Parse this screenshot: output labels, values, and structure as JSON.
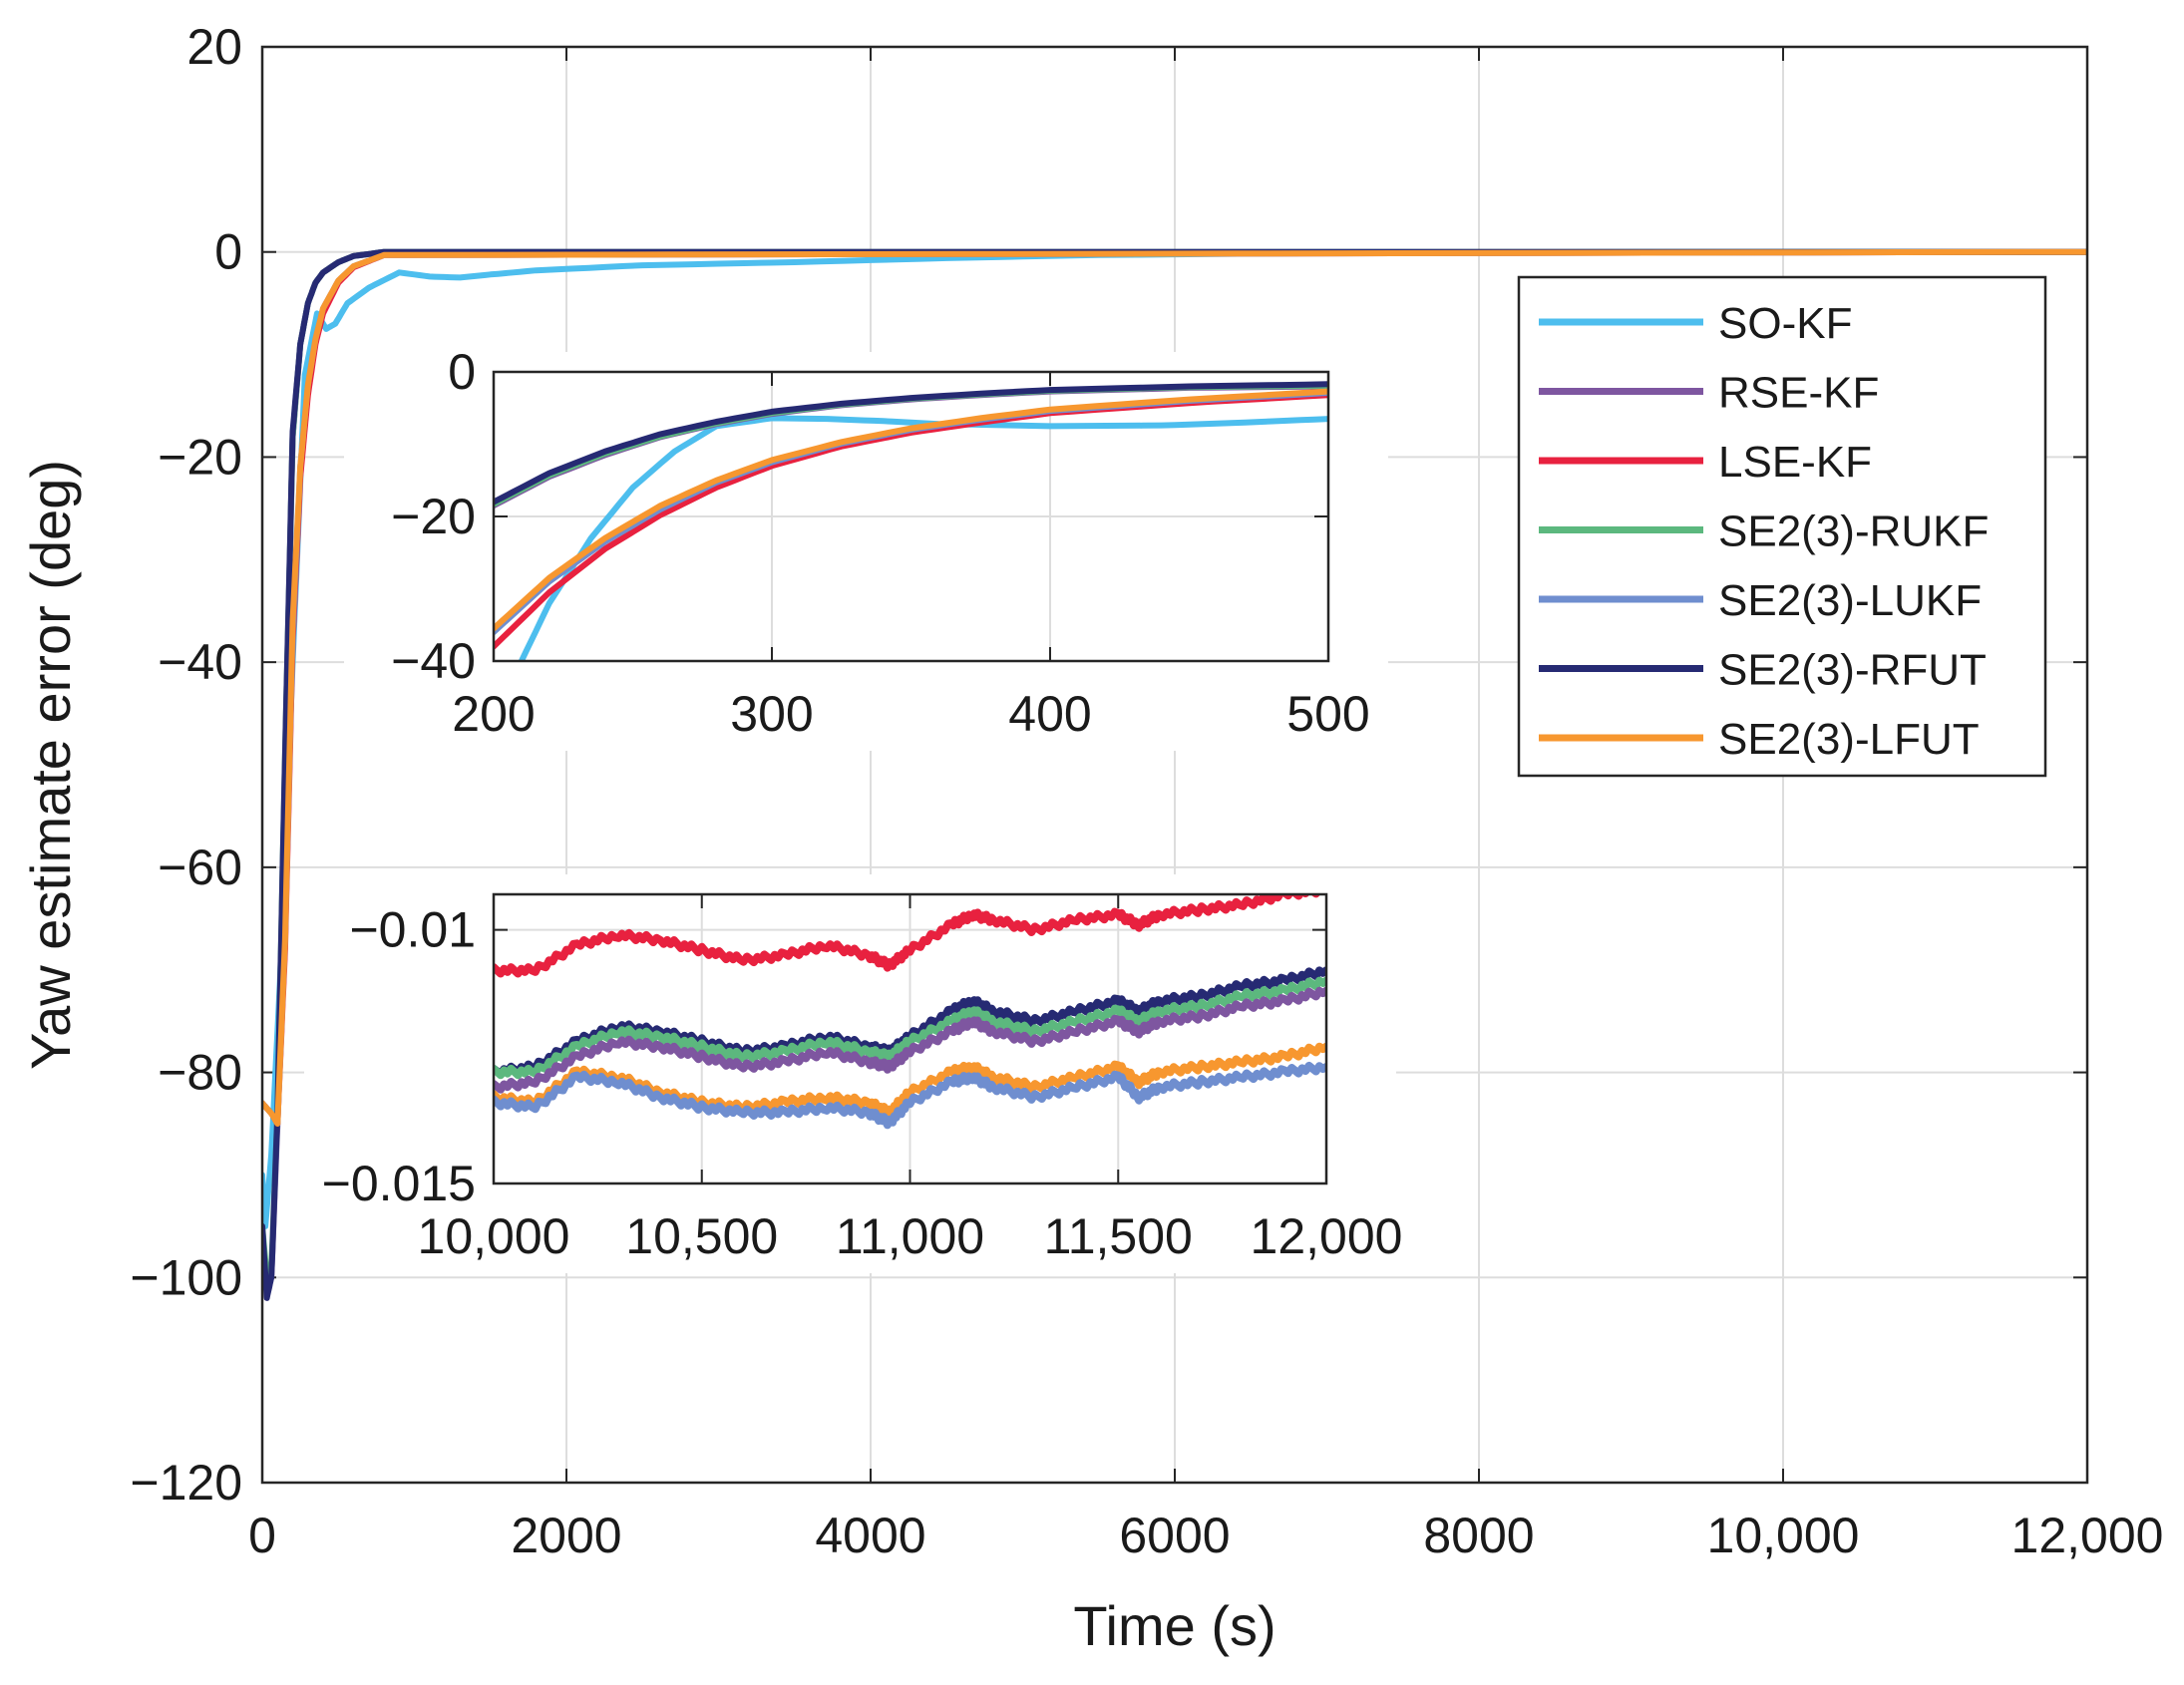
{
  "chart_data": {
    "type": "line",
    "title": "",
    "xlabel": "Time (s)",
    "ylabel": "Yaw estimate error (deg)",
    "xlim": [
      0,
      12000
    ],
    "ylim": [
      -120,
      20
    ],
    "x_ticks": [
      0,
      2000,
      4000,
      6000,
      8000,
      10000,
      12000
    ],
    "x_tick_labels": [
      "0",
      "2000",
      "4000",
      "6000",
      "8000",
      "10,000",
      "12,000"
    ],
    "y_ticks": [
      20,
      0,
      -20,
      -40,
      -60,
      -80,
      -100,
      -120
    ],
    "y_tick_labels": [
      "20",
      "0",
      "−20",
      "−40",
      "−60",
      "−80",
      "−100",
      "−120"
    ],
    "grid": true,
    "legend_position": "top-right",
    "series": [
      {
        "name": "SO-KF",
        "color": "#4dbeee",
        "x": [
          0,
          20,
          60,
          120,
          200,
          280,
          360,
          420,
          480,
          560,
          700,
          900,
          1100,
          1300,
          1500,
          1800,
          2500,
          3500,
          4500,
          5500,
          7000,
          9000,
          12000
        ],
        "y": [
          -90,
          -95,
          -88,
          -70,
          -40,
          -12,
          -6,
          -7.5,
          -7,
          -5,
          -3.5,
          -2,
          -2.4,
          -2.5,
          -2.2,
          -1.8,
          -1.3,
          -1,
          -0.6,
          -0.3,
          -0.1,
          0,
          0
        ]
      },
      {
        "name": "RSE-KF",
        "color": "#7e56a0",
        "x": [
          0,
          30,
          60,
          100,
          150,
          200,
          250,
          300,
          350,
          400,
          500,
          600,
          800,
          12000
        ],
        "y": [
          -96,
          -101,
          -100,
          -85,
          -50,
          -18,
          -9,
          -5,
          -3,
          -2,
          -1,
          -0.4,
          0,
          0
        ]
      },
      {
        "name": "LSE-KF",
        "color": "#e8213f",
        "x": [
          0,
          60,
          100,
          150,
          200,
          250,
          300,
          350,
          400,
          500,
          600,
          800,
          12000
        ],
        "y": [
          -83,
          -84,
          -85,
          -68,
          -38,
          -22,
          -14,
          -9,
          -6,
          -3,
          -1.5,
          -0.3,
          0
        ]
      },
      {
        "name": "SE2(3)-RUKF",
        "color": "#5cb87e",
        "x": [
          0,
          30,
          60,
          100,
          150,
          200,
          250,
          300,
          350,
          400,
          500,
          600,
          800,
          12000
        ],
        "y": [
          -95,
          -100,
          -99,
          -84,
          -49,
          -18,
          -9,
          -5,
          -3,
          -2,
          -1,
          -0.4,
          0,
          0
        ]
      },
      {
        "name": "SE2(3)-LUKF",
        "color": "#6f8ecf",
        "x": [
          0,
          60,
          100,
          150,
          200,
          250,
          300,
          350,
          400,
          500,
          600,
          800,
          12000
        ],
        "y": [
          -83,
          -84,
          -85,
          -67,
          -37,
          -21,
          -13,
          -8.5,
          -5.5,
          -2.8,
          -1.4,
          -0.3,
          0
        ]
      },
      {
        "name": "SE2(3)-RFUT",
        "color": "#262a73",
        "x": [
          0,
          30,
          60,
          100,
          150,
          200,
          250,
          300,
          350,
          400,
          500,
          600,
          800,
          12000
        ],
        "y": [
          -95,
          -102,
          -100,
          -84,
          -49,
          -17.5,
          -9,
          -5,
          -3,
          -2,
          -1,
          -0.4,
          0,
          0
        ]
      },
      {
        "name": "SE2(3)-LFUT",
        "color": "#f7972f",
        "x": [
          0,
          60,
          100,
          150,
          200,
          250,
          300,
          350,
          400,
          500,
          600,
          800,
          12000
        ],
        "y": [
          -83,
          -84,
          -85,
          -67,
          -36,
          -21,
          -13,
          -8.5,
          -5.5,
          -2.8,
          -1.4,
          -0.3,
          0
        ]
      }
    ],
    "insets": [
      {
        "name": "zoom-early",
        "xlim": [
          200,
          500
        ],
        "ylim": [
          -40,
          0
        ],
        "x_ticks": [
          200,
          300,
          400,
          500
        ],
        "x_tick_labels": [
          "200",
          "300",
          "400",
          "500"
        ],
        "y_ticks": [
          0,
          -20,
          -40
        ],
        "y_tick_labels": [
          "0",
          "−20",
          "−40"
        ],
        "series": [
          {
            "name": "SO-KF",
            "color": "#4dbeee",
            "x": [
              210,
              220,
              235,
              250,
              265,
              280,
              300,
              320,
              340,
              360,
              400,
              440,
              470,
              500
            ],
            "y": [
              -40,
              -32,
              -23,
              -16,
              -11,
              -7.5,
              -6.4,
              -6.5,
              -6.8,
              -7.2,
              -7.5,
              -7.4,
              -7,
              -6.5
            ]
          },
          {
            "name": "RSE-KF",
            "color": "#7e56a0",
            "x": [
              200,
              220,
              240,
              260,
              280,
              300,
              325,
              350,
              375,
              400,
              450,
              500
            ],
            "y": [
              -18.5,
              -14.5,
              -11.5,
              -9,
              -7.2,
              -5.8,
              -4.6,
              -3.8,
              -3.2,
              -2.7,
              -2.2,
              -2
            ]
          },
          {
            "name": "LSE-KF",
            "color": "#e8213f",
            "x": [
              200,
              220,
              240,
              260,
              280,
              300,
              325,
              350,
              375,
              400,
              450,
              500
            ],
            "y": [
              -38,
              -30.5,
              -24.5,
              -19.8,
              -16,
              -13,
              -10.3,
              -8.4,
              -7,
              -5.7,
              -4.3,
              -3.2
            ]
          },
          {
            "name": "SE2(3)-RUKF",
            "color": "#5cb87e",
            "x": [
              200,
              220,
              240,
              260,
              280,
              300,
              325,
              350,
              375,
              400,
              450,
              500
            ],
            "y": [
              -18.3,
              -14.3,
              -11.3,
              -8.9,
              -7.1,
              -5.7,
              -4.5,
              -3.7,
              -3.1,
              -2.6,
              -2.1,
              -1.9
            ]
          },
          {
            "name": "SE2(3)-LUKF",
            "color": "#6f8ecf",
            "x": [
              200,
              220,
              240,
              260,
              280,
              300,
              325,
              350,
              375,
              400,
              450,
              500
            ],
            "y": [
              -36,
              -29,
              -23.5,
              -19,
              -15.3,
              -12.5,
              -9.9,
              -8,
              -6.6,
              -5.4,
              -4,
              -2.9
            ]
          },
          {
            "name": "SE2(3)-RFUT",
            "color": "#262a73",
            "x": [
              200,
              220,
              240,
              260,
              280,
              300,
              325,
              350,
              375,
              400,
              450,
              500
            ],
            "y": [
              -18,
              -14,
              -11,
              -8.6,
              -6.9,
              -5.5,
              -4.4,
              -3.6,
              -3,
              -2.5,
              -2,
              -1.7
            ]
          },
          {
            "name": "SE2(3)-LFUT",
            "color": "#f7972f",
            "x": [
              200,
              220,
              240,
              260,
              280,
              300,
              325,
              350,
              375,
              400,
              450,
              500
            ],
            "y": [
              -35.5,
              -28.5,
              -23,
              -18.5,
              -15,
              -12.2,
              -9.7,
              -7.8,
              -6.4,
              -5.2,
              -3.8,
              -2.7
            ]
          }
        ]
      },
      {
        "name": "zoom-late",
        "xlim": [
          10000,
          12000
        ],
        "ylim": [
          -0.015,
          -0.0093
        ],
        "x_ticks": [
          10000,
          10500,
          11000,
          11500,
          12000
        ],
        "x_tick_labels": [
          "10,000",
          "10,500",
          "11,000",
          "11,500",
          "12,000"
        ],
        "y_ticks": [
          -0.01,
          -0.015
        ],
        "y_tick_labels": [
          "−0.01",
          "−0.015"
        ],
        "series": [
          {
            "name": "SO-KF",
            "color": "#4dbeee",
            "x": [],
            "y": []
          },
          {
            "name": "LSE-KF",
            "color": "#e8213f",
            "x": [
              10000,
              10100,
              10200,
              10300,
              10400,
              10500,
              10600,
              10700,
              10800,
              10900,
              10950,
              11000,
              11100,
              11150,
              11200,
              11300,
              11400,
              11500,
              11550,
              11600,
              11700,
              11800,
              11900,
              12000
            ],
            "y": [
              -0.0108,
              -0.0108,
              -0.0103,
              -0.0101,
              -0.0102,
              -0.0104,
              -0.0106,
              -0.0105,
              -0.0103,
              -0.0105,
              -0.0107,
              -0.0104,
              -0.0099,
              -0.0097,
              -0.0098,
              -0.01,
              -0.0098,
              -0.0097,
              -0.0099,
              -0.0097,
              -0.0096,
              -0.0095,
              -0.0093,
              -0.0092
            ]
          },
          {
            "name": "SE2(3)-RFUT",
            "color": "#262a73",
            "x": [
              10000,
              10100,
              10200,
              10300,
              10400,
              10500,
              10600,
              10700,
              10800,
              10900,
              10950,
              11000,
              11100,
              11150,
              11200,
              11300,
              11400,
              11500,
              11550,
              11600,
              11700,
              11800,
              11900,
              12000
            ],
            "y": [
              -0.0128,
              -0.0127,
              -0.0122,
              -0.0119,
              -0.012,
              -0.0122,
              -0.0124,
              -0.0123,
              -0.0121,
              -0.0123,
              -0.0124,
              -0.0121,
              -0.0116,
              -0.0114,
              -0.0116,
              -0.0118,
              -0.0116,
              -0.0114,
              -0.0116,
              -0.0114,
              -0.0113,
              -0.0111,
              -0.011,
              -0.0108
            ]
          },
          {
            "name": "SE2(3)-RUKF",
            "color": "#5cb87e",
            "x": [
              10000,
              10100,
              10200,
              10300,
              10400,
              10500,
              10600,
              10700,
              10800,
              10900,
              10950,
              11000,
              11100,
              11150,
              11200,
              11300,
              11400,
              11500,
              11550,
              11600,
              11700,
              11800,
              11900,
              12000
            ],
            "y": [
              -0.0128,
              -0.0128,
              -0.0123,
              -0.012,
              -0.0121,
              -0.0123,
              -0.0125,
              -0.0124,
              -0.0122,
              -0.0124,
              -0.0125,
              -0.0122,
              -0.0118,
              -0.0116,
              -0.0118,
              -0.012,
              -0.0118,
              -0.0116,
              -0.0118,
              -0.0116,
              -0.0115,
              -0.0113,
              -0.0112,
              -0.011
            ]
          },
          {
            "name": "RSE-KF",
            "color": "#7e56a0",
            "x": [
              10000,
              10100,
              10200,
              10300,
              10400,
              10500,
              10600,
              10700,
              10800,
              10900,
              10950,
              11000,
              11100,
              11150,
              11200,
              11300,
              11400,
              11500,
              11550,
              11600,
              11700,
              11800,
              11900,
              12000
            ],
            "y": [
              -0.0131,
              -0.013,
              -0.0125,
              -0.0122,
              -0.0123,
              -0.0125,
              -0.0127,
              -0.0126,
              -0.0124,
              -0.0126,
              -0.0127,
              -0.0124,
              -0.012,
              -0.0118,
              -0.012,
              -0.0122,
              -0.012,
              -0.0118,
              -0.012,
              -0.0118,
              -0.0117,
              -0.0115,
              -0.0114,
              -0.0112
            ]
          },
          {
            "name": "SE2(3)-LFUT",
            "color": "#f7972f",
            "x": [
              10000,
              10100,
              10200,
              10300,
              10400,
              10500,
              10600,
              10700,
              10800,
              10900,
              10950,
              11000,
              11100,
              11150,
              11200,
              11300,
              11400,
              11500,
              11550,
              11600,
              11700,
              11800,
              11900,
              12000
            ],
            "y": [
              -0.0133,
              -0.0134,
              -0.0128,
              -0.0129,
              -0.0132,
              -0.0134,
              -0.0135,
              -0.0134,
              -0.0133,
              -0.0134,
              -0.0136,
              -0.0132,
              -0.0128,
              -0.0127,
              -0.0129,
              -0.0131,
              -0.0129,
              -0.0127,
              -0.013,
              -0.0128,
              -0.0127,
              -0.0126,
              -0.0125,
              -0.0123
            ]
          },
          {
            "name": "SE2(3)-LUKF",
            "color": "#6f8ecf",
            "x": [
              10000,
              10100,
              10200,
              10300,
              10400,
              10500,
              10600,
              10700,
              10800,
              10900,
              10950,
              11000,
              11100,
              11150,
              11200,
              11300,
              11400,
              11500,
              11550,
              11600,
              11700,
              11800,
              11900,
              12000
            ],
            "y": [
              -0.0134,
              -0.0135,
              -0.0129,
              -0.013,
              -0.0133,
              -0.0135,
              -0.0136,
              -0.0136,
              -0.0135,
              -0.0136,
              -0.0138,
              -0.0134,
              -0.013,
              -0.0129,
              -0.0131,
              -0.0133,
              -0.0131,
              -0.0129,
              -0.0133,
              -0.0131,
              -0.013,
              -0.0129,
              -0.0128,
              -0.0127
            ]
          }
        ]
      }
    ]
  }
}
